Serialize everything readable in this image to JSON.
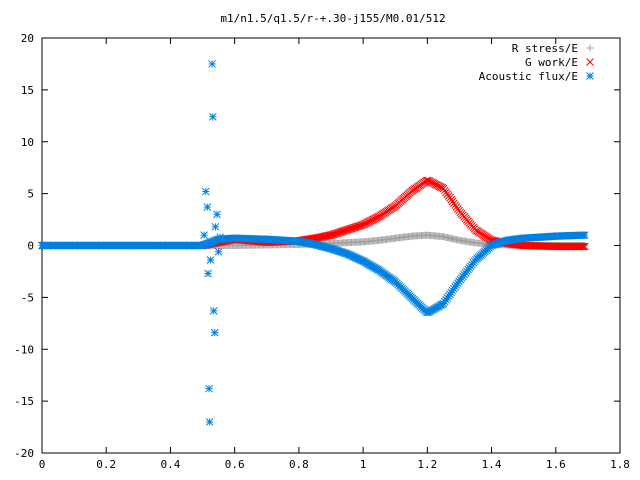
{
  "chart_data": {
    "type": "scatter",
    "title": "m1/n1.5/q1.5/r-+.30-j155/M0.01/512",
    "xlabel": "",
    "ylabel": "",
    "xlim": [
      0,
      1.8
    ],
    "ylim": [
      -20,
      20
    ],
    "xticks": [
      "0",
      "0.2",
      "0.4",
      "0.6",
      "0.8",
      "1",
      "1.2",
      "1.4",
      "1.6",
      "1.8"
    ],
    "yticks": [
      "-20",
      "-15",
      "-10",
      "-5",
      "0",
      "5",
      "10",
      "15",
      "20"
    ],
    "grid": false,
    "legend_position": "top-right",
    "series": [
      {
        "name": "R stress/E",
        "marker": "plus",
        "color": "#a0a0a0",
        "x": [
          0.0,
          0.2,
          0.4,
          0.5,
          0.55,
          0.6,
          0.7,
          0.8,
          0.9,
          1.0,
          1.05,
          1.1,
          1.15,
          1.2,
          1.25,
          1.3,
          1.35,
          1.4,
          1.45,
          1.5,
          1.6,
          1.69
        ],
        "y": [
          0.0,
          0.0,
          0.0,
          0.0,
          0.0,
          0.0,
          0.05,
          0.1,
          0.2,
          0.35,
          0.5,
          0.7,
          0.9,
          1.0,
          0.85,
          0.5,
          0.25,
          0.1,
          0.05,
          0.0,
          0.0,
          0.0
        ]
      },
      {
        "name": "G work/E",
        "marker": "cross",
        "color": "#ff0000",
        "x": [
          0.0,
          0.2,
          0.4,
          0.5,
          0.55,
          0.6,
          0.7,
          0.8,
          0.85,
          0.9,
          0.95,
          1.0,
          1.05,
          1.1,
          1.15,
          1.2,
          1.25,
          1.3,
          1.35,
          1.4,
          1.45,
          1.5,
          1.6,
          1.69
        ],
        "y": [
          0.0,
          0.0,
          0.0,
          0.0,
          0.3,
          0.6,
          0.3,
          0.45,
          0.7,
          1.0,
          1.5,
          2.0,
          2.8,
          3.8,
          5.2,
          6.3,
          5.5,
          3.3,
          1.5,
          0.5,
          0.2,
          0.0,
          -0.1,
          -0.1
        ]
      },
      {
        "name": "Acoustic flux/E",
        "marker": "star",
        "color": "#0080e0",
        "x": [
          0.0,
          0.2,
          0.4,
          0.5,
          0.55,
          0.6,
          0.7,
          0.8,
          0.85,
          0.9,
          0.95,
          1.0,
          1.05,
          1.1,
          1.15,
          1.2,
          1.25,
          1.3,
          1.35,
          1.4,
          1.45,
          1.5,
          1.6,
          1.69
        ],
        "y": [
          0.0,
          0.0,
          0.0,
          0.0,
          0.6,
          0.7,
          0.6,
          0.4,
          0.1,
          -0.3,
          -0.8,
          -1.5,
          -2.4,
          -3.5,
          -5.0,
          -6.5,
          -5.6,
          -3.4,
          -1.4,
          0.0,
          0.5,
          0.7,
          0.9,
          1.0
        ],
        "outliers": {
          "x": [
            0.505,
            0.51,
            0.515,
            0.517,
            0.52,
            0.522,
            0.525,
            0.527,
            0.53,
            0.532,
            0.535,
            0.538,
            0.54,
            0.545,
            0.55,
            0.555
          ],
          "y": [
            1.0,
            5.2,
            3.7,
            -2.7,
            -13.8,
            -17.0,
            -1.4,
            0.2,
            17.5,
            12.4,
            -6.3,
            -8.4,
            1.8,
            3.0,
            -0.6,
            0.8
          ]
        }
      }
    ]
  }
}
